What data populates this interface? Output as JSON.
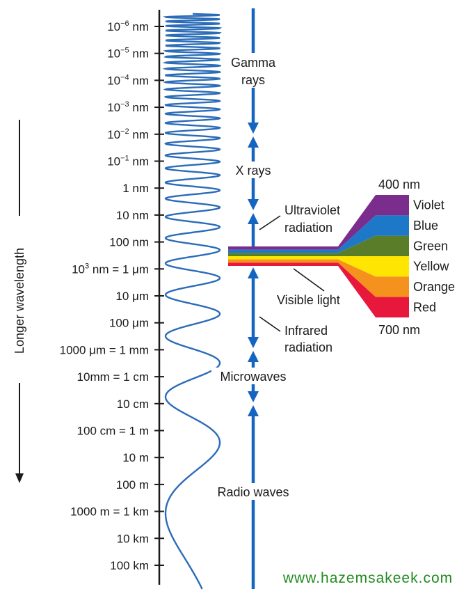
{
  "axis_title": "Longer wavelength",
  "ticks": [
    {
      "base": "10",
      "sup": "−6",
      "unit": " nm"
    },
    {
      "base": "10",
      "sup": "−5",
      "unit": " nm"
    },
    {
      "base": "10",
      "sup": "−4",
      "unit": " nm"
    },
    {
      "base": "10",
      "sup": "−3",
      "unit": " nm"
    },
    {
      "base": "10",
      "sup": "−2",
      "unit": " nm"
    },
    {
      "base": "10",
      "sup": "−1",
      "unit": " nm"
    },
    {
      "base": "1 nm"
    },
    {
      "base": "10 nm"
    },
    {
      "base": "100 nm"
    },
    {
      "base": "10",
      "sup": "3",
      "unit": " nm = 1 μm"
    },
    {
      "base": "10 μm"
    },
    {
      "base": "100 μm"
    },
    {
      "base": "1000 μm = 1 mm"
    },
    {
      "base": "10mm = 1 cm"
    },
    {
      "base": "10 cm"
    },
    {
      "base": "100 cm = 1 m"
    },
    {
      "base": "10 m"
    },
    {
      "base": "100 m"
    },
    {
      "base": "1000 m = 1 km"
    },
    {
      "base": "10 km"
    },
    {
      "base": "100 km"
    }
  ],
  "regions": {
    "gamma_line1": "Gamma",
    "gamma_line2": "rays",
    "xray": "X rays",
    "uv_line1": "Ultraviolet",
    "uv_line2": "radiation",
    "visible": "Visible light",
    "ir_line1": "Infrared",
    "ir_line2": "radiation",
    "microwaves": "Microwaves",
    "radio": "Radio waves"
  },
  "spectrum": {
    "top_label": "400 nm",
    "bottom_label": "700 nm",
    "bands": [
      {
        "name": "Violet",
        "color": "#7b2d8e"
      },
      {
        "name": "Blue",
        "color": "#1e78c8"
      },
      {
        "name": "Green",
        "color": "#5a7d2a"
      },
      {
        "name": "Yellow",
        "color": "#ffe600"
      },
      {
        "name": "Orange",
        "color": "#f5921e"
      },
      {
        "name": "Red",
        "color": "#e8173c"
      }
    ]
  },
  "colors": {
    "wave": "#2b6cb8",
    "arrow": "#1565c0",
    "axis": "#1a1a1a",
    "website": "#1f8a1f"
  },
  "website": "www.hazemsakeek.com"
}
